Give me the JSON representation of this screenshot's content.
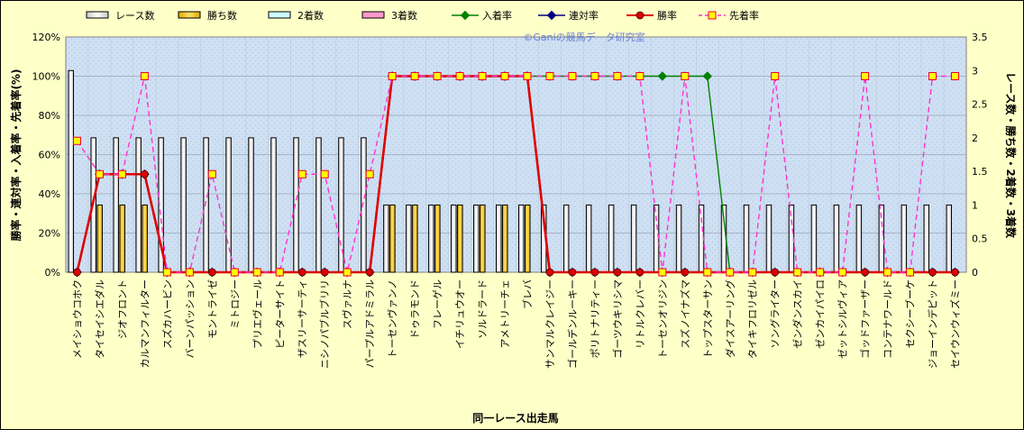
{
  "chart_data": {
    "type": "bar",
    "title": "",
    "watermark": "©Ganiの競馬データ研究室",
    "xlabel": "同一レース出走馬",
    "ylabel_left": "勝率・連対率・入着率・先着率(%)",
    "ylabel_right": "レース数・勝ち数・2着数・3着数",
    "ylim_left": [
      0,
      120
    ],
    "ylim_right": [
      0,
      3.5
    ],
    "yticks_left": [
      "0%",
      "20%",
      "40%",
      "60%",
      "80%",
      "100%",
      "120%"
    ],
    "yticks_right": [
      "0",
      "0.5",
      "1",
      "1.5",
      "2",
      "2.5",
      "3",
      "3.5"
    ],
    "grid": true,
    "legend_position": "top",
    "colors": {
      "races": "#ffffff",
      "wins": "#ffcc00",
      "second": "#ccffff",
      "third": "#ff99cc",
      "in_place_rate": "#008000",
      "top2_rate": "#000080",
      "win_rate": "#dd0000",
      "ahead_rate": "#ff33cc"
    },
    "categories": [
      "メイショウコホク",
      "タイセイシエダル",
      "ジオフロント",
      "カルマンフィルター",
      "スズカハービン",
      "バーンパッション",
      "モントライゼ",
      "ミトロジー",
      "プリエヴェール",
      "ピーターサイト",
      "ザスリーサーティ",
      "ニシノパブルブリリ",
      "スヴァルナ",
      "パープルアドミラル",
      "トーセンヴァンノ",
      "ドゥラモンド",
      "フレーゲル",
      "イチリュウオー",
      "ソルドラード",
      "アメトリーチェ",
      "ブレバ",
      "サンマルクレイジー",
      "ゴールデンルーキー",
      "ポリトナリティー",
      "ゴーツウキリシマ",
      "リトルクレバー",
      "トーセンオリジン",
      "スズノイナズマ",
      "トップスターサン",
      "ダイスアーリング",
      "タイキフロリゼル",
      "ソングライター",
      "ゼンダンスカイ",
      "ゼンカイパイロ",
      "ゼットシルヴィア",
      "ゴッドファーザー",
      "コンテナワールド",
      "セクシーブーケ",
      "ジョーインデピット",
      "セイウンウィズミー"
    ],
    "series": [
      {
        "name": "レース数",
        "axis": "right",
        "kind": "bar",
        "values": [
          3,
          2,
          2,
          2,
          2,
          2,
          2,
          2,
          2,
          2,
          2,
          2,
          2,
          2,
          1,
          1,
          1,
          1,
          1,
          1,
          1,
          1,
          1,
          1,
          1,
          1,
          1,
          1,
          1,
          1,
          1,
          1,
          1,
          1,
          1,
          1,
          1,
          1,
          1,
          1
        ]
      },
      {
        "name": "勝ち数",
        "axis": "right",
        "kind": "bar",
        "values": [
          0,
          1,
          1,
          1,
          0,
          0,
          0,
          0,
          0,
          0,
          0,
          0,
          0,
          0,
          1,
          1,
          1,
          1,
          1,
          1,
          1,
          0,
          0,
          0,
          0,
          0,
          0,
          0,
          0,
          0,
          0,
          0,
          0,
          0,
          0,
          0,
          0,
          0,
          0,
          0
        ]
      },
      {
        "name": "2着数",
        "axis": "right",
        "kind": "bar",
        "values": [
          0,
          0,
          0,
          0,
          0,
          0,
          0,
          0,
          0,
          0,
          0,
          0,
          0,
          0,
          0,
          0,
          0,
          0,
          0,
          0,
          0,
          0,
          0,
          0,
          0,
          0,
          0,
          0,
          0,
          0,
          0,
          0,
          0,
          0,
          0,
          0,
          0,
          0,
          0,
          0
        ]
      },
      {
        "name": "3着数",
        "axis": "right",
        "kind": "bar",
        "values": [
          0,
          0,
          0,
          0,
          0,
          0,
          0,
          0,
          0,
          0,
          0,
          0,
          0,
          0,
          0,
          0,
          0,
          0,
          0,
          0,
          0,
          0,
          0,
          0,
          0,
          0,
          0,
          0,
          0,
          0,
          0,
          0,
          0,
          0,
          0,
          0,
          0,
          0,
          0,
          0
        ]
      },
      {
        "name": "入着率",
        "axis": "left",
        "kind": "line",
        "values": [
          0,
          50,
          50,
          50,
          0,
          0,
          0,
          0,
          0,
          0,
          0,
          0,
          0,
          0,
          100,
          100,
          100,
          100,
          100,
          100,
          100,
          100,
          100,
          100,
          100,
          100,
          100,
          100,
          100,
          0,
          0,
          0,
          0,
          0,
          0,
          0,
          0,
          0,
          0,
          0
        ]
      },
      {
        "name": "連対率",
        "axis": "left",
        "kind": "line",
        "values": [
          0,
          50,
          50,
          50,
          0,
          0,
          0,
          0,
          0,
          0,
          0,
          0,
          0,
          0,
          100,
          100,
          100,
          100,
          100,
          100,
          100,
          0,
          0,
          0,
          0,
          0,
          0,
          0,
          0,
          0,
          0,
          0,
          0,
          0,
          0,
          0,
          0,
          0,
          0,
          0
        ]
      },
      {
        "name": "勝率",
        "axis": "left",
        "kind": "line",
        "values": [
          0,
          50,
          50,
          50,
          0,
          0,
          0,
          0,
          0,
          0,
          0,
          0,
          0,
          0,
          100,
          100,
          100,
          100,
          100,
          100,
          100,
          0,
          0,
          0,
          0,
          0,
          0,
          0,
          0,
          0,
          0,
          0,
          0,
          0,
          0,
          0,
          0,
          0,
          0,
          0
        ]
      },
      {
        "name": "先着率",
        "axis": "left",
        "kind": "line",
        "values": [
          67,
          50,
          50,
          100,
          0,
          0,
          50,
          0,
          0,
          0,
          50,
          50,
          0,
          50,
          100,
          100,
          100,
          100,
          100,
          100,
          100,
          100,
          100,
          100,
          100,
          100,
          0,
          100,
          0,
          0,
          0,
          100,
          0,
          0,
          0,
          100,
          0,
          0,
          100,
          100
        ]
      }
    ]
  }
}
